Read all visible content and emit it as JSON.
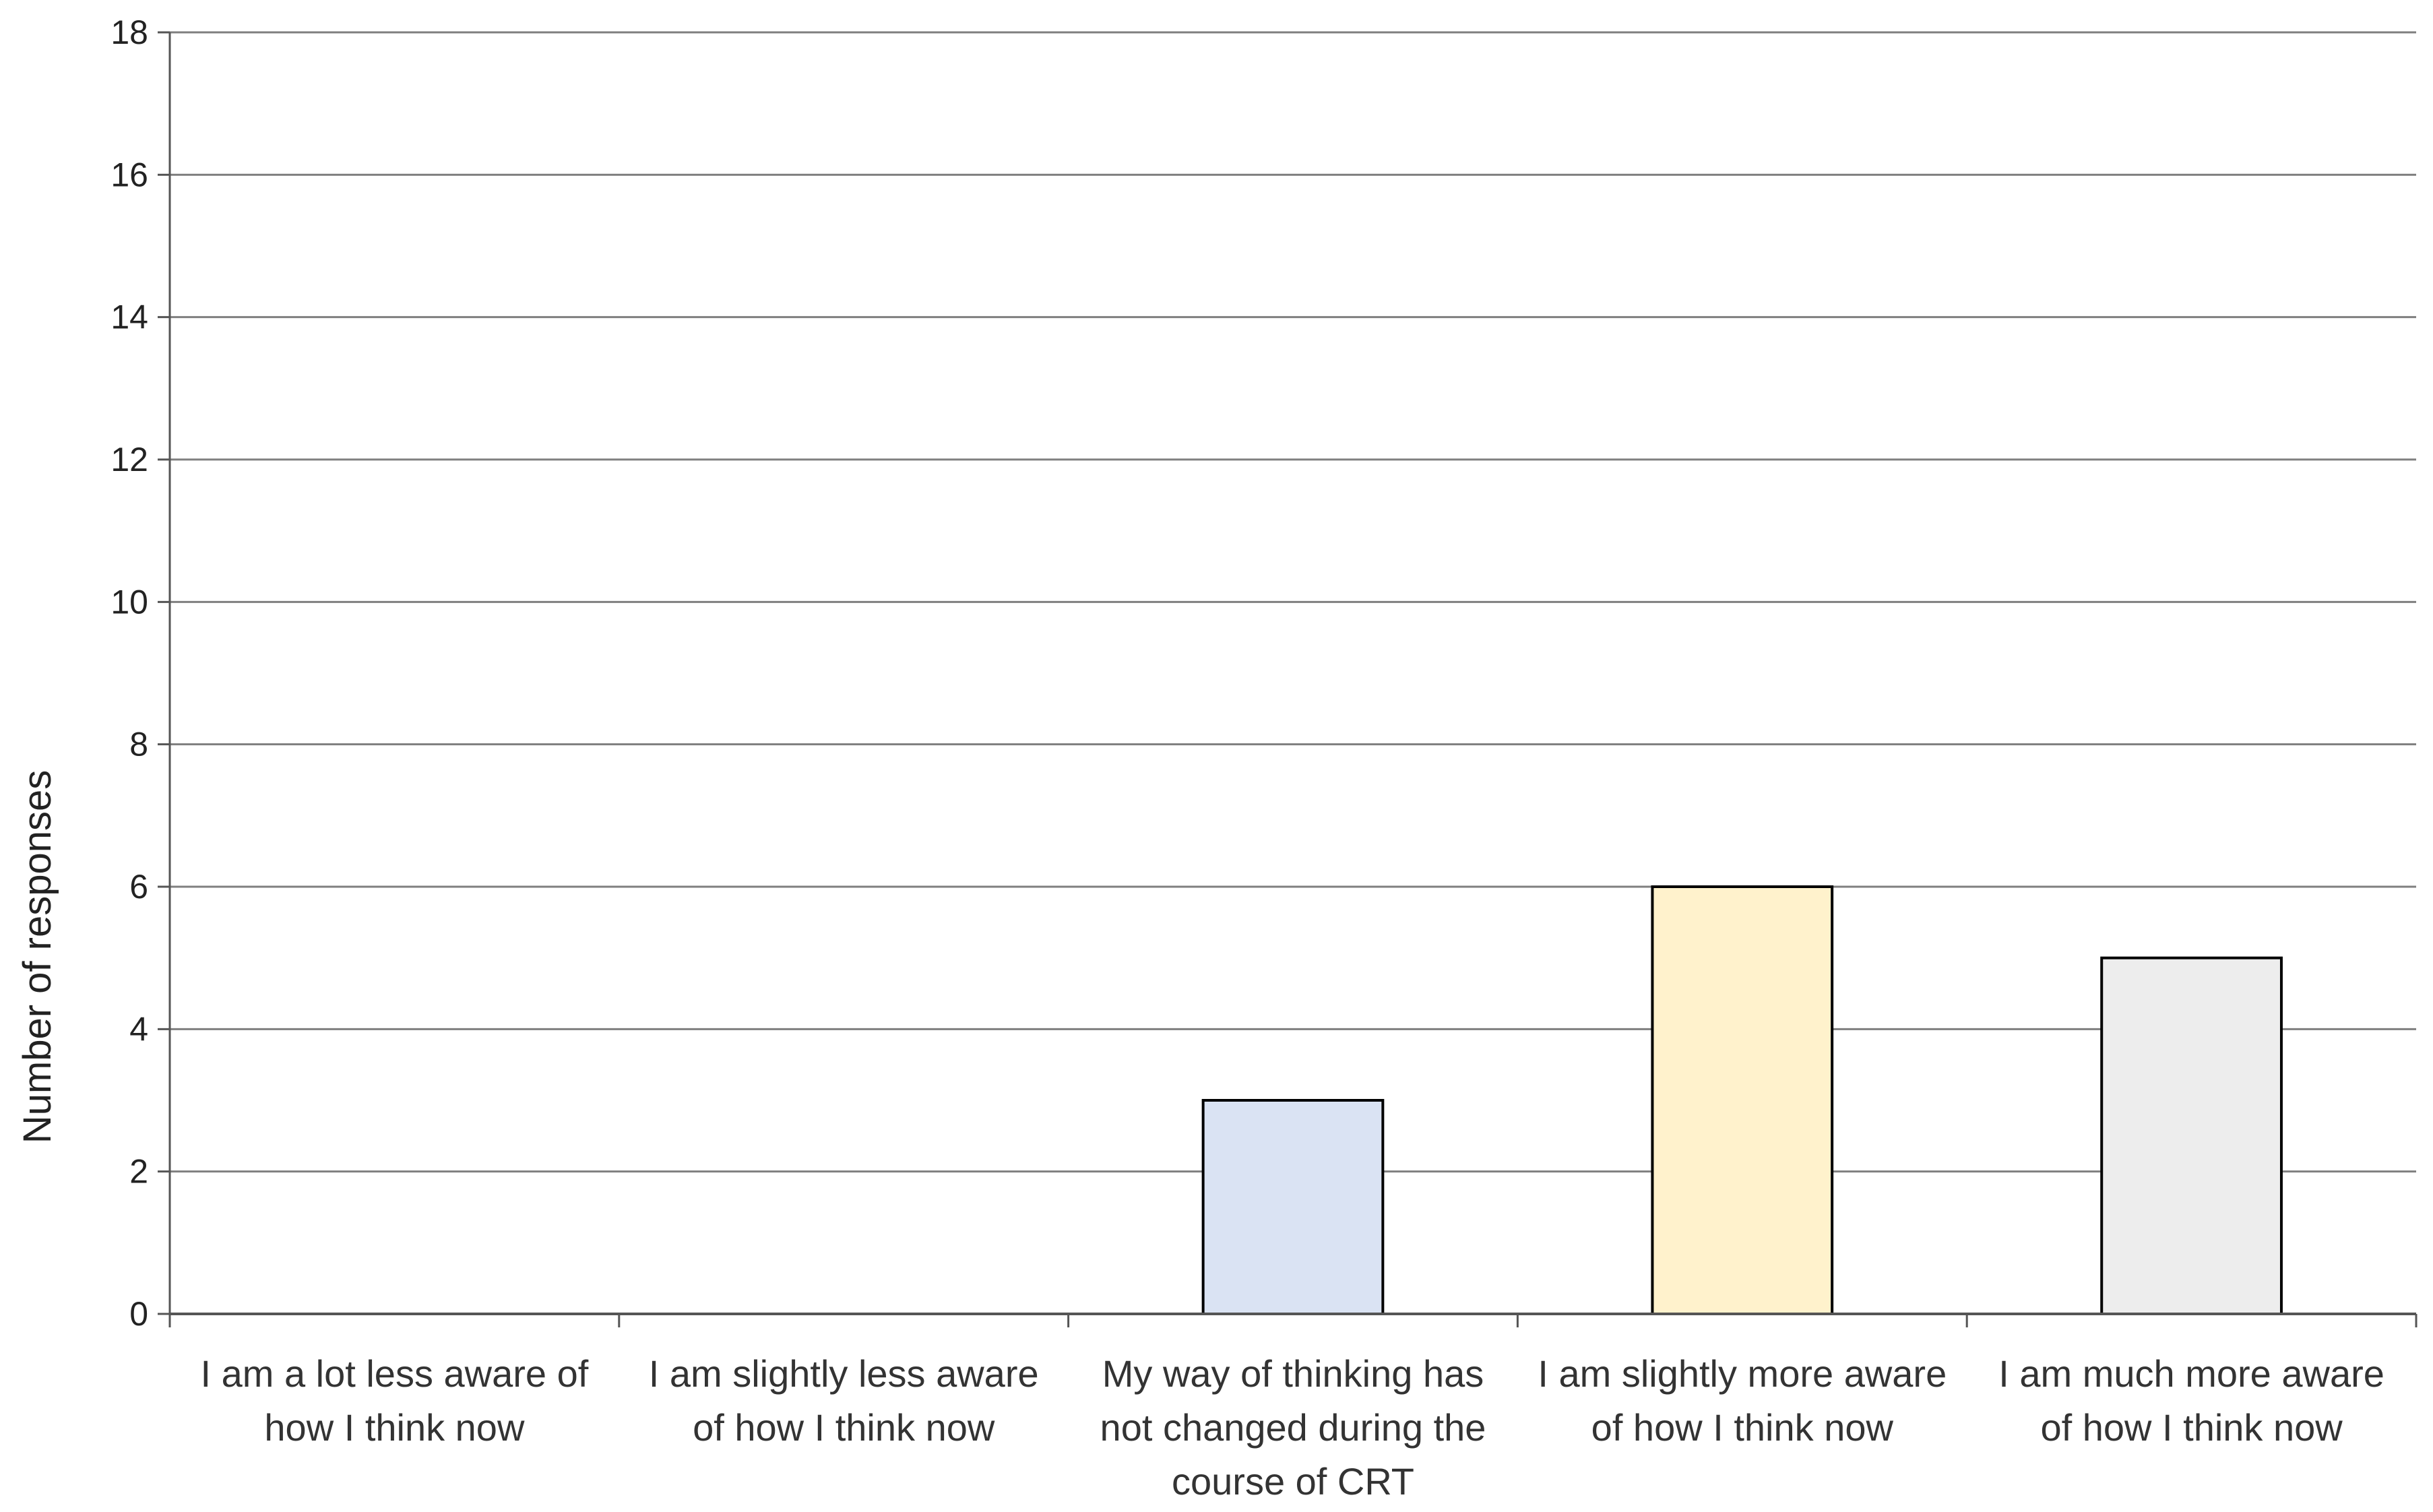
{
  "chart_data": {
    "type": "bar",
    "ylabel": "Number of responses",
    "xlabel": "",
    "ylim": [
      0,
      18
    ],
    "yticks": [
      0,
      2,
      4,
      6,
      8,
      10,
      12,
      14,
      16,
      18
    ],
    "grid": true,
    "categories": [
      [
        "I am a lot less aware of",
        "how I think now"
      ],
      [
        "I am slightly less aware",
        "of how I think now"
      ],
      [
        "My way of thinking has",
        "not changed during the",
        "course of CRT"
      ],
      [
        "I am slightly more aware",
        "of how I think now"
      ],
      [
        "I am much more aware",
        "of how I think now"
      ]
    ],
    "values": [
      0,
      0,
      3,
      6,
      5
    ],
    "colors": [
      "#ffffff",
      "#ffffff",
      "#dae3f3",
      "#fff2cc",
      "#ededed"
    ],
    "bar_stroke": "#000000",
    "grid_color": "#7f7f7f"
  }
}
